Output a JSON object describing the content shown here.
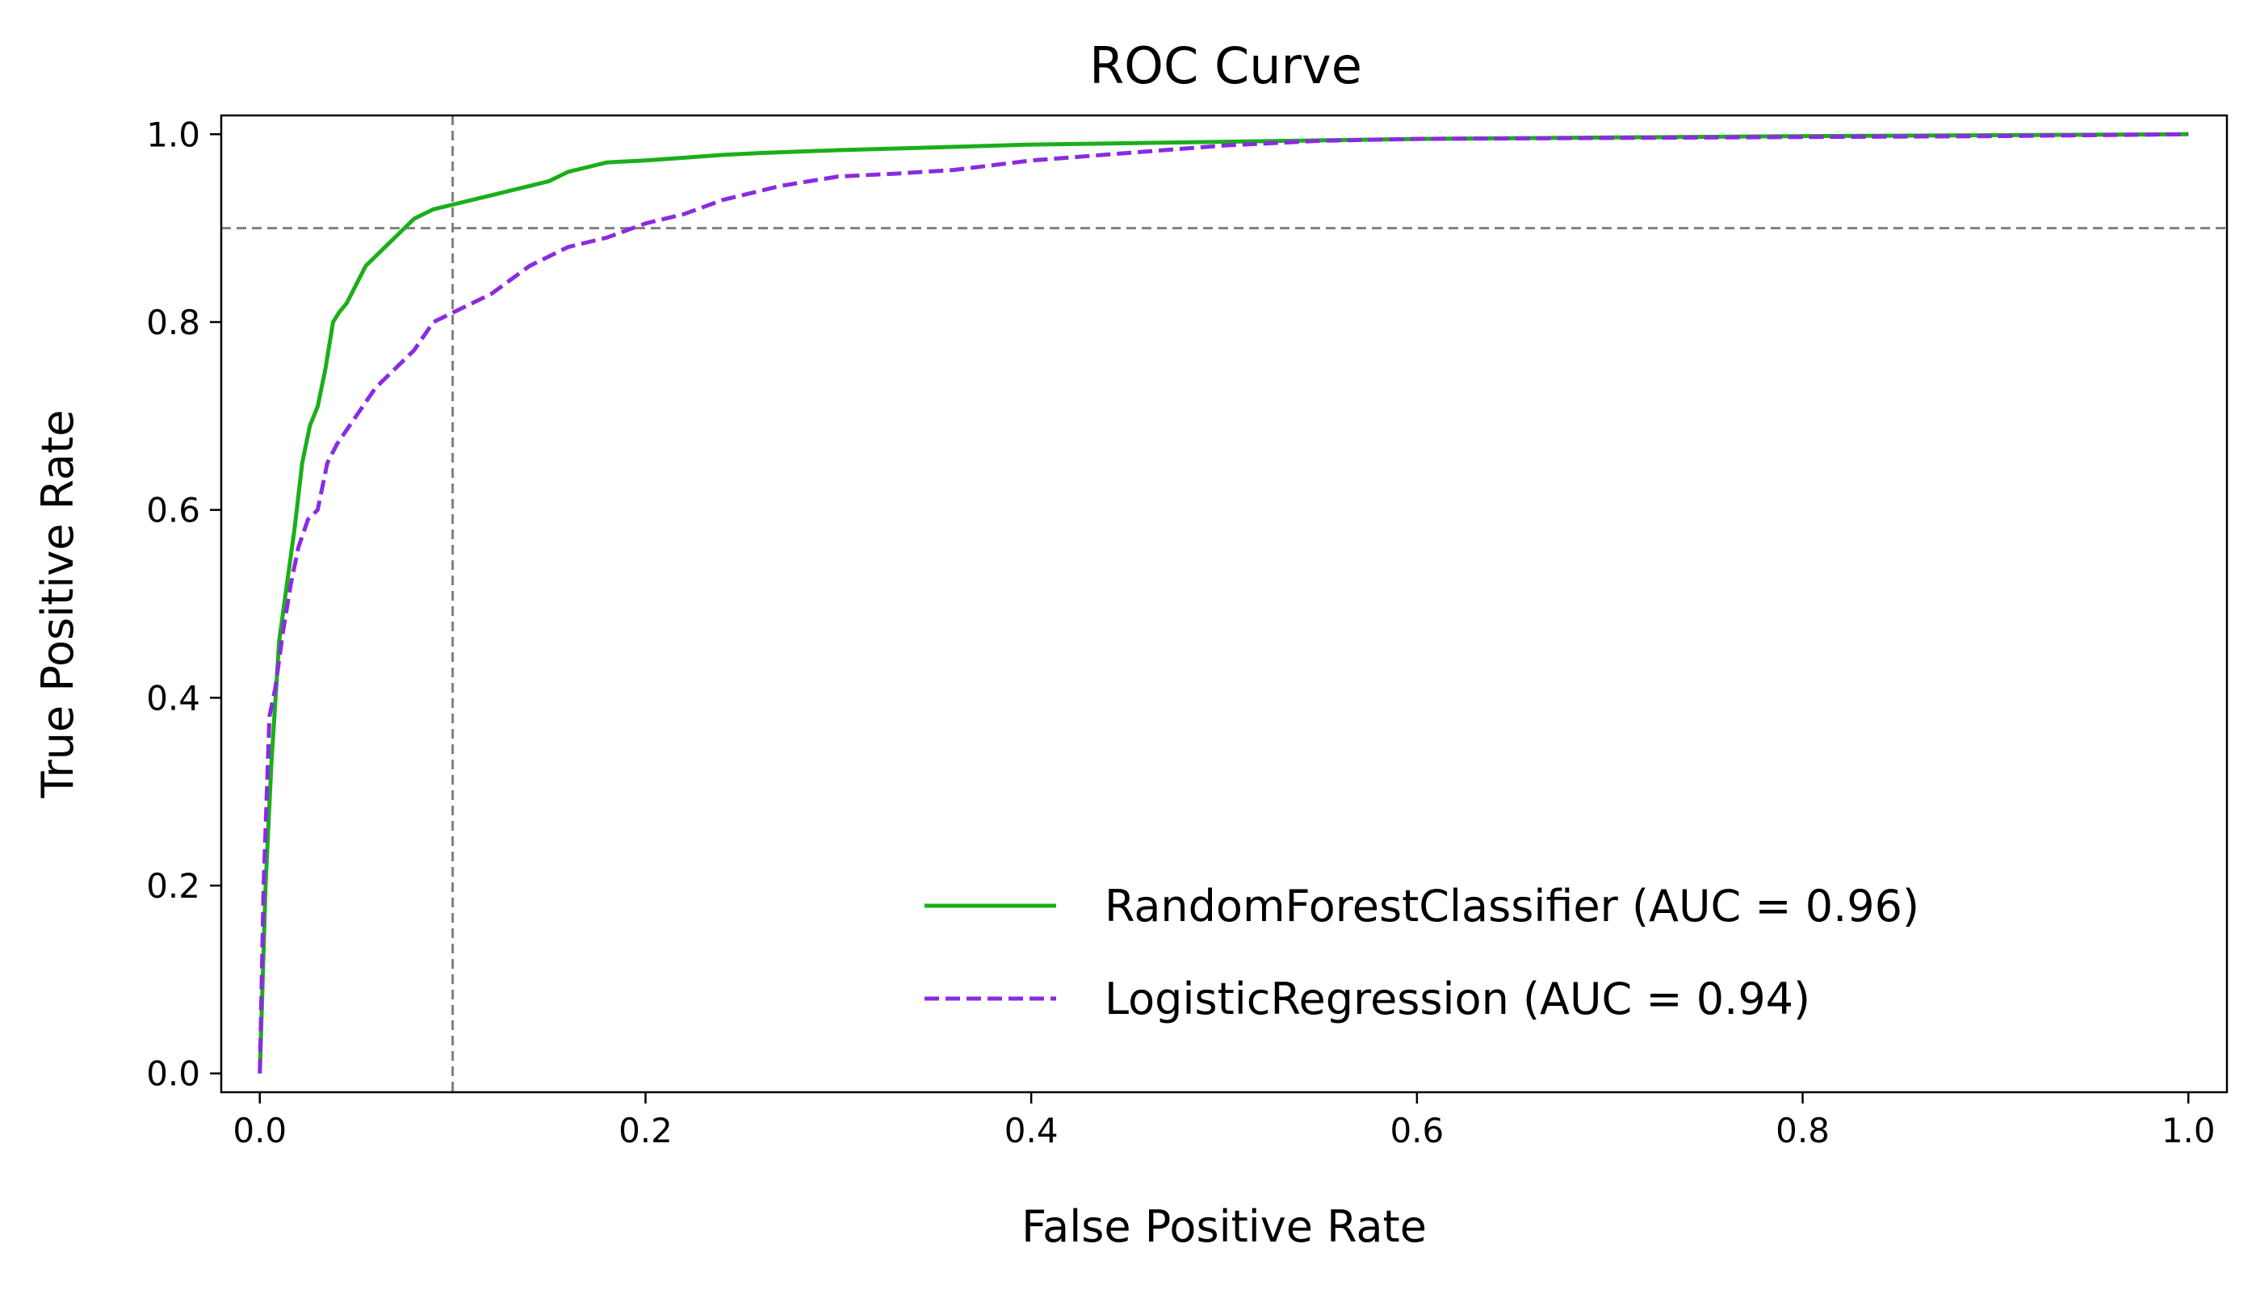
{
  "chart_data": {
    "type": "line",
    "title": "ROC Curve",
    "xlabel": "False Positive Rate",
    "ylabel": "True Positive Rate",
    "xlim": [
      -0.02,
      1.02
    ],
    "ylim": [
      -0.02,
      1.02
    ],
    "xticks": [
      0.0,
      0.2,
      0.4,
      0.6,
      0.8,
      1.0
    ],
    "yticks": [
      0.0,
      0.2,
      0.4,
      0.6,
      0.8,
      1.0
    ],
    "xtick_labels": [
      "0.0",
      "0.2",
      "0.4",
      "0.6",
      "0.8",
      "1.0"
    ],
    "ytick_labels": [
      "0.0",
      "0.2",
      "0.4",
      "0.6",
      "0.8",
      "1.0"
    ],
    "grid": false,
    "legend_position": "lower-right",
    "reference_lines": [
      {
        "orientation": "vertical",
        "value": 0.1,
        "style": "dashed",
        "color": "#808080"
      },
      {
        "orientation": "horizontal",
        "value": 0.9,
        "style": "dashed",
        "color": "#808080"
      }
    ],
    "series": [
      {
        "name": "RandomForestClassifier (AUC = 0.96)",
        "color": "#1aaf1a",
        "style": "solid",
        "x": [
          0.0,
          0.003,
          0.006,
          0.01,
          0.014,
          0.018,
          0.022,
          0.026,
          0.03,
          0.034,
          0.038,
          0.041,
          0.045,
          0.05,
          0.055,
          0.06,
          0.065,
          0.07,
          0.075,
          0.08,
          0.09,
          0.1,
          0.11,
          0.12,
          0.13,
          0.14,
          0.15,
          0.16,
          0.17,
          0.18,
          0.2,
          0.22,
          0.24,
          0.26,
          0.3,
          0.35,
          0.4,
          0.5,
          0.6,
          0.8,
          1.0
        ],
        "y": [
          0.0,
          0.2,
          0.33,
          0.46,
          0.52,
          0.58,
          0.65,
          0.69,
          0.71,
          0.75,
          0.8,
          0.81,
          0.82,
          0.84,
          0.86,
          0.87,
          0.88,
          0.89,
          0.9,
          0.91,
          0.92,
          0.925,
          0.93,
          0.935,
          0.94,
          0.945,
          0.95,
          0.96,
          0.965,
          0.97,
          0.972,
          0.975,
          0.978,
          0.98,
          0.983,
          0.986,
          0.989,
          0.992,
          0.995,
          0.998,
          1.0
        ]
      },
      {
        "name": "LogisticRegression (AUC = 0.94)",
        "color": "#8a2be2",
        "style": "dashed",
        "x": [
          0.0,
          0.002,
          0.005,
          0.008,
          0.012,
          0.016,
          0.02,
          0.025,
          0.03,
          0.035,
          0.04,
          0.05,
          0.06,
          0.07,
          0.08,
          0.09,
          0.1,
          0.11,
          0.12,
          0.14,
          0.16,
          0.18,
          0.2,
          0.22,
          0.24,
          0.27,
          0.3,
          0.33,
          0.36,
          0.4,
          0.45,
          0.5,
          0.55,
          0.6,
          0.7,
          0.8,
          0.9,
          1.0
        ],
        "y": [
          0.0,
          0.2,
          0.38,
          0.41,
          0.47,
          0.52,
          0.56,
          0.59,
          0.6,
          0.65,
          0.67,
          0.7,
          0.73,
          0.75,
          0.77,
          0.8,
          0.81,
          0.82,
          0.83,
          0.86,
          0.88,
          0.89,
          0.905,
          0.915,
          0.93,
          0.945,
          0.955,
          0.958,
          0.962,
          0.972,
          0.98,
          0.988,
          0.993,
          0.995,
          0.996,
          0.997,
          0.998,
          1.0
        ]
      }
    ]
  }
}
